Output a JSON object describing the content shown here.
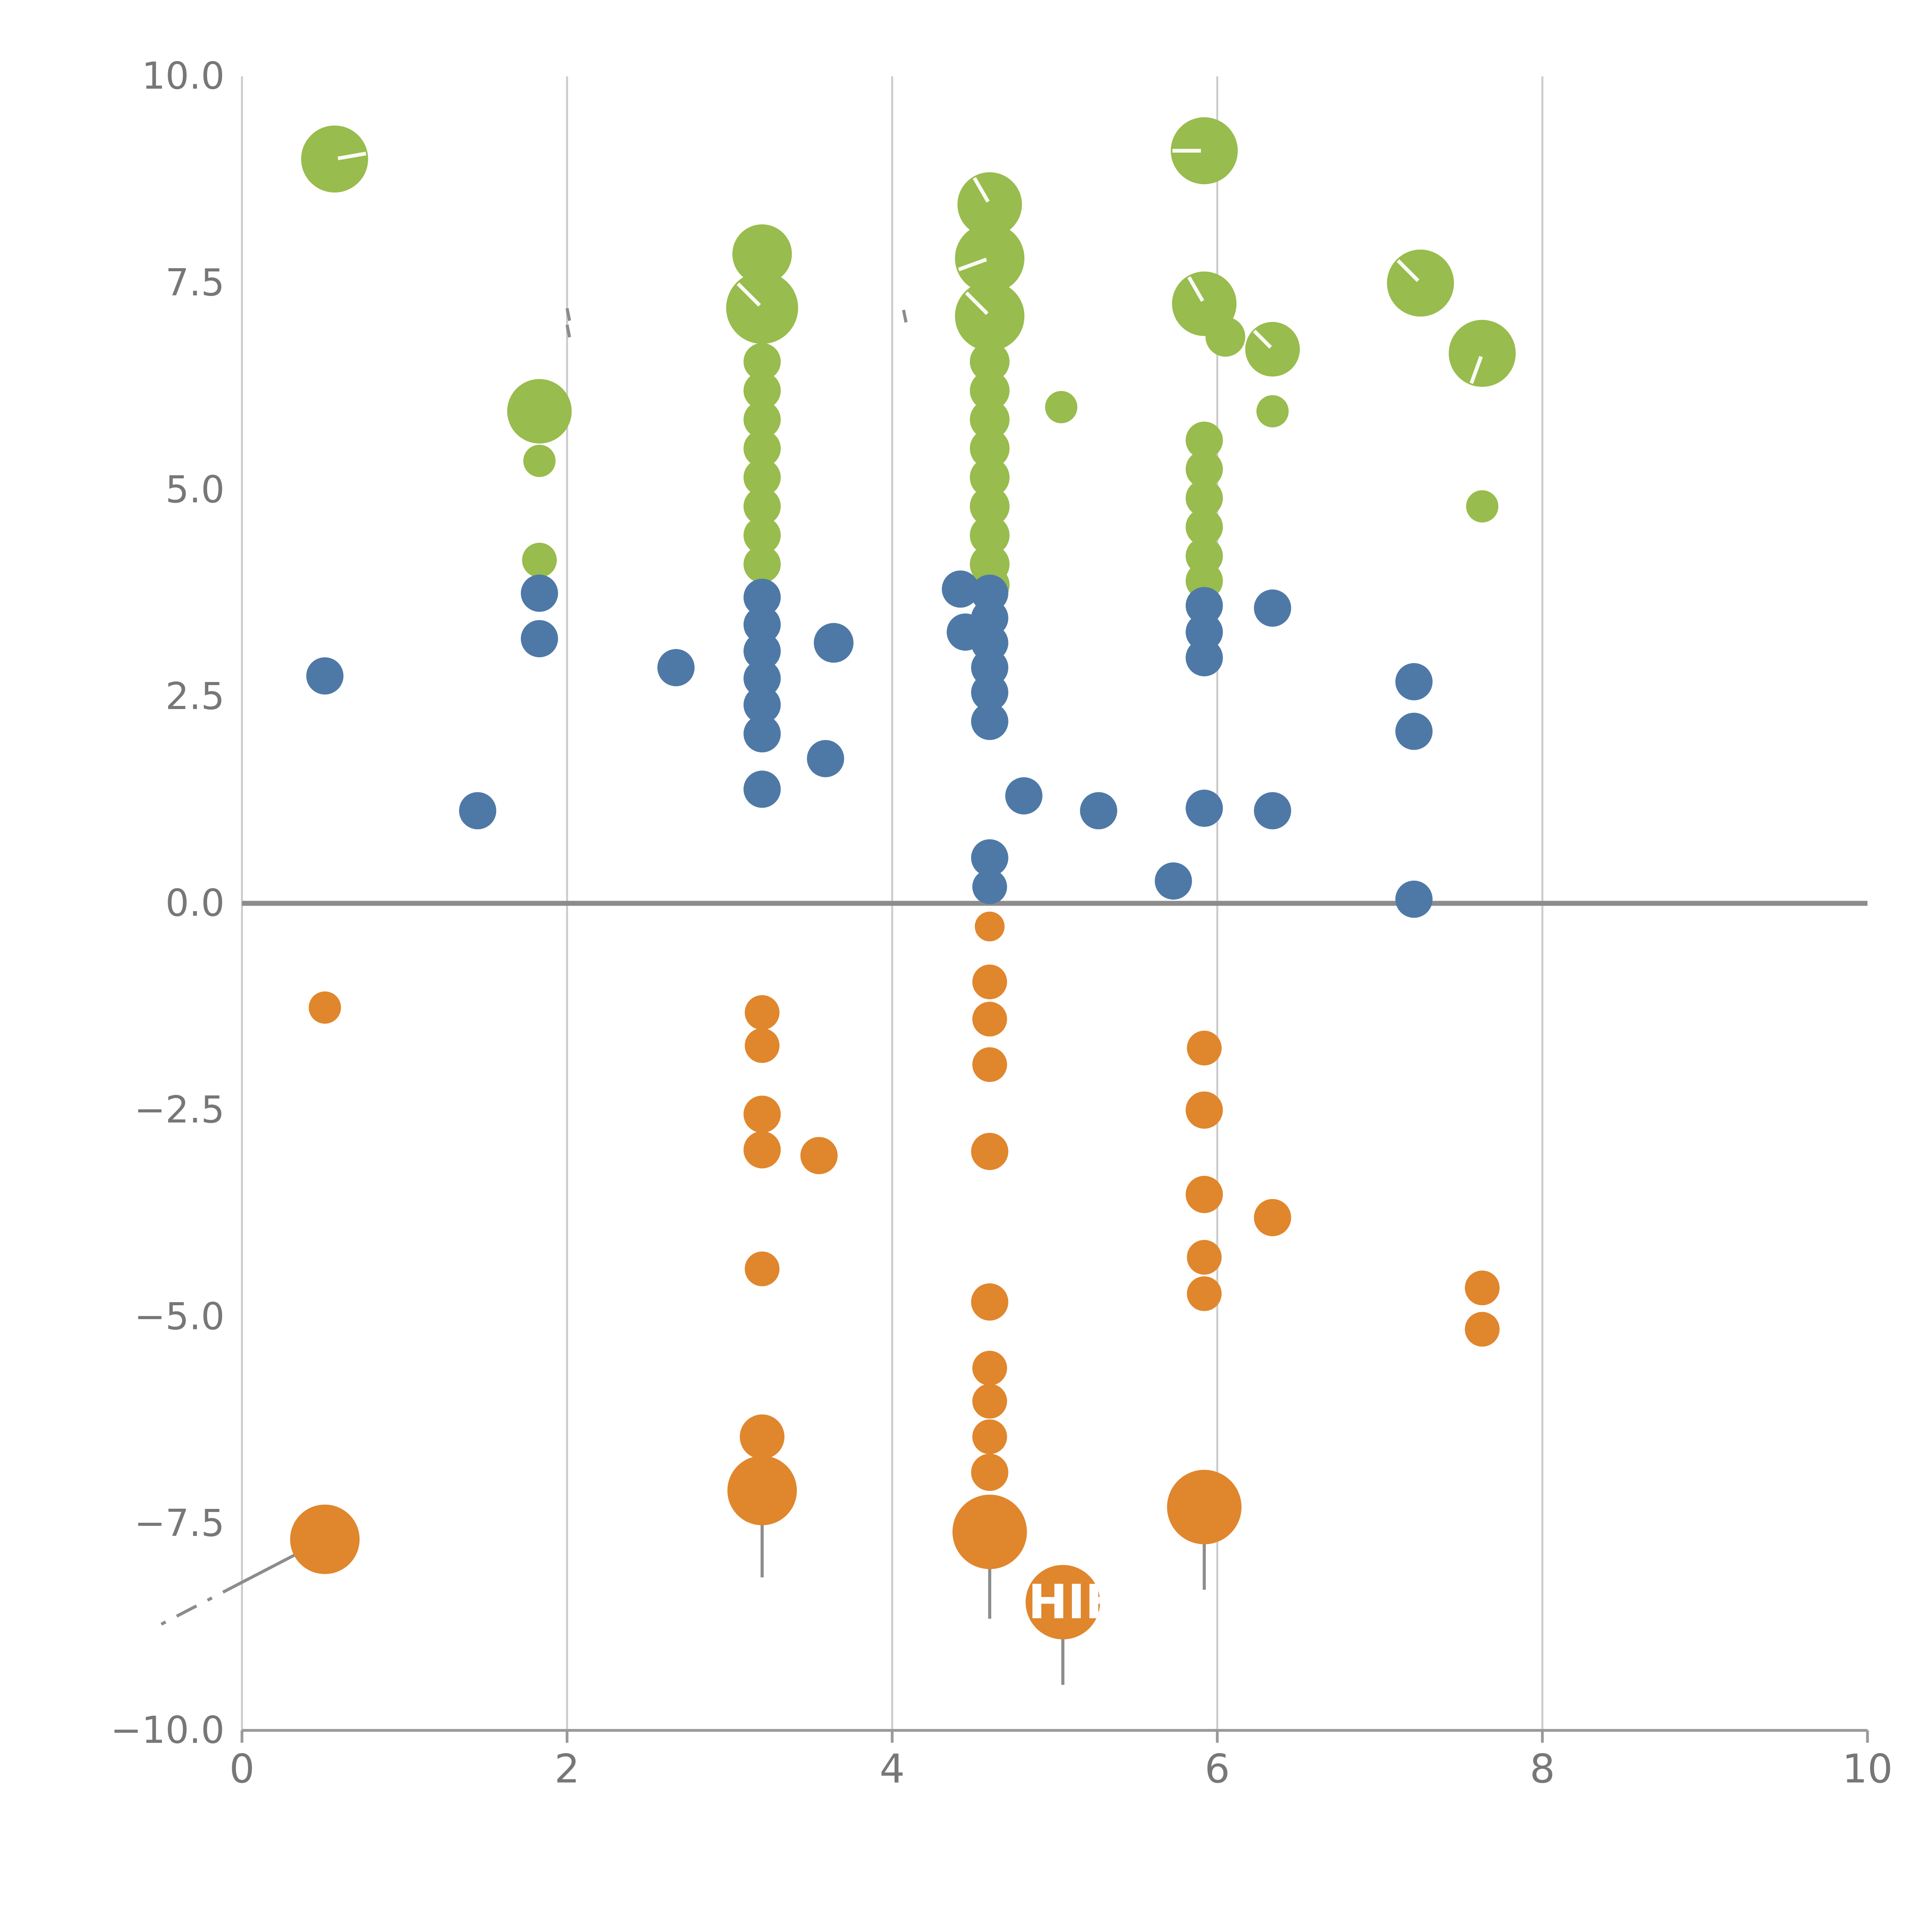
{
  "figure": {
    "background": "#ffffff",
    "grid_color": "#cccccc",
    "left_spine_color": "#cccccc",
    "bottom_spine_color": "#999999",
    "zero_line_color": "#8c8c8c",
    "tick_label_color": "#777777",
    "annotation_line_color": "#8c8c8c",
    "bubble_tick_color": "#ffffff"
  },
  "chart_data": {
    "type": "scatter",
    "title": "",
    "xlabel": "",
    "ylabel": "",
    "xlim": [
      0,
      10
    ],
    "ylim": [
      -10,
      10
    ],
    "grid": true,
    "grid_x": [
      2,
      4,
      6,
      8
    ],
    "zero_line_y": 0,
    "legend": "none",
    "x_ticks": [
      {
        "v": 0,
        "label": "0"
      },
      {
        "v": 2,
        "label": "2"
      },
      {
        "v": 4,
        "label": "4"
      },
      {
        "v": 6,
        "label": "6"
      },
      {
        "v": 8,
        "label": "8"
      },
      {
        "v": 10,
        "label": "10"
      }
    ],
    "y_ticks": [
      {
        "v": 10,
        "label": "10.0"
      },
      {
        "v": 7.5,
        "label": "7.5"
      },
      {
        "v": 5,
        "label": "5.0"
      },
      {
        "v": 2.5,
        "label": "2.5"
      },
      {
        "v": 0,
        "label": "0.0"
      },
      {
        "v": -2.5,
        "label": "−2.5"
      },
      {
        "v": -5,
        "label": "−5.0"
      },
      {
        "v": -7.5,
        "label": "−7.5"
      },
      {
        "v": -10,
        "label": "−10.0"
      }
    ],
    "series": [
      {
        "name": "green",
        "color": "#98BC4D",
        "points": [
          [
            0.57,
            9.0,
            27,
            10
          ],
          [
            1.83,
            5.95,
            26
          ],
          [
            1.83,
            5.35,
            13
          ],
          [
            1.83,
            4.15,
            14
          ],
          [
            3.2,
            7.85,
            24
          ],
          [
            3.2,
            7.2,
            29,
            135
          ],
          [
            3.2,
            6.55,
            15
          ],
          [
            3.2,
            6.2,
            15
          ],
          [
            3.2,
            5.85,
            15
          ],
          [
            3.2,
            5.5,
            15
          ],
          [
            3.2,
            5.15,
            15
          ],
          [
            3.2,
            4.8,
            15
          ],
          [
            3.2,
            4.45,
            15
          ],
          [
            3.2,
            4.1,
            15
          ],
          [
            4.6,
            8.45,
            26,
            120
          ],
          [
            4.6,
            7.8,
            28,
            200
          ],
          [
            4.6,
            7.1,
            28,
            135
          ],
          [
            4.6,
            6.55,
            16
          ],
          [
            4.6,
            6.2,
            16
          ],
          [
            4.6,
            5.85,
            16
          ],
          [
            4.6,
            5.5,
            16
          ],
          [
            4.6,
            5.15,
            16
          ],
          [
            4.6,
            4.8,
            16
          ],
          [
            4.6,
            4.45,
            16
          ],
          [
            4.6,
            4.1,
            16
          ],
          [
            4.6,
            3.85,
            16
          ],
          [
            5.04,
            6.0,
            13
          ],
          [
            5.92,
            9.1,
            27,
            180
          ],
          [
            5.92,
            7.25,
            26,
            120
          ],
          [
            6.05,
            6.85,
            16
          ],
          [
            6.34,
            6.7,
            22,
            135
          ],
          [
            6.34,
            5.95,
            13
          ],
          [
            5.92,
            5.6,
            15
          ],
          [
            5.92,
            5.25,
            15
          ],
          [
            5.92,
            4.9,
            15
          ],
          [
            5.92,
            4.55,
            15
          ],
          [
            5.92,
            4.2,
            15
          ],
          [
            5.92,
            3.9,
            15
          ],
          [
            7.25,
            7.5,
            27,
            135
          ],
          [
            7.63,
            6.65,
            27,
            250
          ],
          [
            7.63,
            4.8,
            13
          ]
        ]
      },
      {
        "name": "blue",
        "color": "#4E79A7",
        "points": [
          [
            0.51,
            2.75,
            15
          ],
          [
            1.45,
            1.12,
            15
          ],
          [
            1.83,
            3.75,
            15
          ],
          [
            1.83,
            3.2,
            15
          ],
          [
            2.67,
            2.85,
            15
          ],
          [
            3.2,
            3.7,
            15
          ],
          [
            3.2,
            3.37,
            15
          ],
          [
            3.2,
            3.05,
            15
          ],
          [
            3.2,
            2.72,
            15
          ],
          [
            3.2,
            2.4,
            15
          ],
          [
            3.2,
            2.05,
            15
          ],
          [
            3.2,
            1.38,
            15
          ],
          [
            3.64,
            3.15,
            16
          ],
          [
            3.59,
            1.75,
            15
          ],
          [
            4.42,
            3.8,
            15
          ],
          [
            4.45,
            3.28,
            15
          ],
          [
            4.6,
            3.75,
            15
          ],
          [
            4.6,
            3.45,
            15
          ],
          [
            4.6,
            3.15,
            15
          ],
          [
            4.6,
            2.85,
            15
          ],
          [
            4.6,
            2.55,
            15
          ],
          [
            4.6,
            2.2,
            15
          ],
          [
            4.6,
            0.55,
            15
          ],
          [
            4.6,
            0.2,
            14
          ],
          [
            4.81,
            1.3,
            15
          ],
          [
            5.27,
            1.12,
            15
          ],
          [
            5.73,
            0.27,
            15
          ],
          [
            5.92,
            3.6,
            15
          ],
          [
            5.92,
            3.28,
            15
          ],
          [
            5.92,
            2.97,
            15
          ],
          [
            5.92,
            1.15,
            15
          ],
          [
            6.34,
            3.57,
            15
          ],
          [
            6.34,
            1.12,
            15
          ],
          [
            7.21,
            2.68,
            15
          ],
          [
            7.21,
            2.08,
            15
          ],
          [
            7.21,
            0.05,
            15
          ]
        ]
      },
      {
        "name": "orange",
        "color": "#E0862C",
        "points": [
          [
            0.51,
            -1.26,
            13
          ],
          [
            0.51,
            -7.69,
            28
          ],
          [
            3.2,
            -1.32,
            14
          ],
          [
            3.2,
            -1.72,
            14
          ],
          [
            3.2,
            -2.55,
            15
          ],
          [
            3.2,
            -2.98,
            15
          ],
          [
            3.55,
            -3.05,
            15
          ],
          [
            3.2,
            -4.42,
            14
          ],
          [
            3.2,
            -6.45,
            18
          ],
          [
            3.2,
            -7.1,
            28
          ],
          [
            4.6,
            -0.28,
            12
          ],
          [
            4.6,
            -0.95,
            14
          ],
          [
            4.6,
            -1.4,
            14
          ],
          [
            4.6,
            -1.95,
            14
          ],
          [
            4.6,
            -3.0,
            15
          ],
          [
            4.6,
            -4.82,
            15
          ],
          [
            4.6,
            -5.62,
            14
          ],
          [
            4.6,
            -6.02,
            14
          ],
          [
            4.6,
            -6.45,
            14
          ],
          [
            4.6,
            -6.88,
            15
          ],
          [
            4.6,
            -7.6,
            30
          ],
          [
            5.05,
            -8.45,
            30
          ],
          [
            5.92,
            -1.75,
            14
          ],
          [
            5.92,
            -2.5,
            15
          ],
          [
            5.92,
            -3.52,
            15
          ],
          [
            5.92,
            -4.28,
            14
          ],
          [
            5.92,
            -4.72,
            14
          ],
          [
            5.92,
            -7.3,
            30
          ],
          [
            6.34,
            -3.8,
            15
          ],
          [
            7.63,
            -4.65,
            14
          ],
          [
            7.63,
            -5.15,
            14
          ]
        ]
      }
    ],
    "annotations": {
      "bubble_label": {
        "text": "HIE",
        "x": 5.05,
        "y": -8.45,
        "r": 30,
        "color": "#ffffff"
      },
      "leader_line": {
        "x1": 0.51,
        "y1": -7.69,
        "x2": -0.5,
        "y2": -8.72
      },
      "stems": [
        {
          "x": 3.2,
          "y1": -7.1,
          "y2": -8.15
        },
        {
          "x": 4.6,
          "y1": -7.6,
          "y2": -8.65
        },
        {
          "x": 5.05,
          "y1": -8.45,
          "y2": -9.45
        },
        {
          "x": 5.92,
          "y1": -7.3,
          "y2": -8.3
        }
      ],
      "dashes": [
        {
          "x": 2.0,
          "y": 6.92
        },
        {
          "x": 2.0,
          "y": 7.12
        },
        {
          "x": 4.07,
          "y": 7.1
        }
      ]
    }
  }
}
